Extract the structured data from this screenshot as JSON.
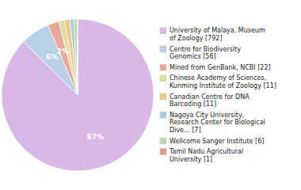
{
  "chart_data": {
    "type": "pie",
    "categories": [
      "University of Malaya, Museum\nof Zoology [792]",
      "Centre for Biodiversity\nGenomics [56]",
      "Mined from GenBank, NCBI [22]",
      "Chinese Academy of Sciences,\nKunming Institute of Zoology [11]",
      "Canadian Centre for DNA\nBarcoding [11]",
      "Nagoya City University,\nResearch Center for Biological\nDive... [7]",
      "Wellcome Sanger Institute [6]",
      "Tamil Nadu Agricultural\nUniversity [1]"
    ],
    "values": [
      87.4,
      6.2,
      2.4,
      1.2,
      1.2,
      0.8,
      0.7,
      0.1
    ],
    "value_labels": [
      "87%",
      "6%",
      "2%",
      null,
      null,
      null,
      null,
      null
    ],
    "colors": [
      "#d9b8e8",
      "#b8d0e8",
      "#e8a898",
      "#d4e0a0",
      "#f0c888",
      "#a8cce0",
      "#b8dca8",
      "#e09888"
    ],
    "data_labels": true,
    "legend": "right"
  }
}
